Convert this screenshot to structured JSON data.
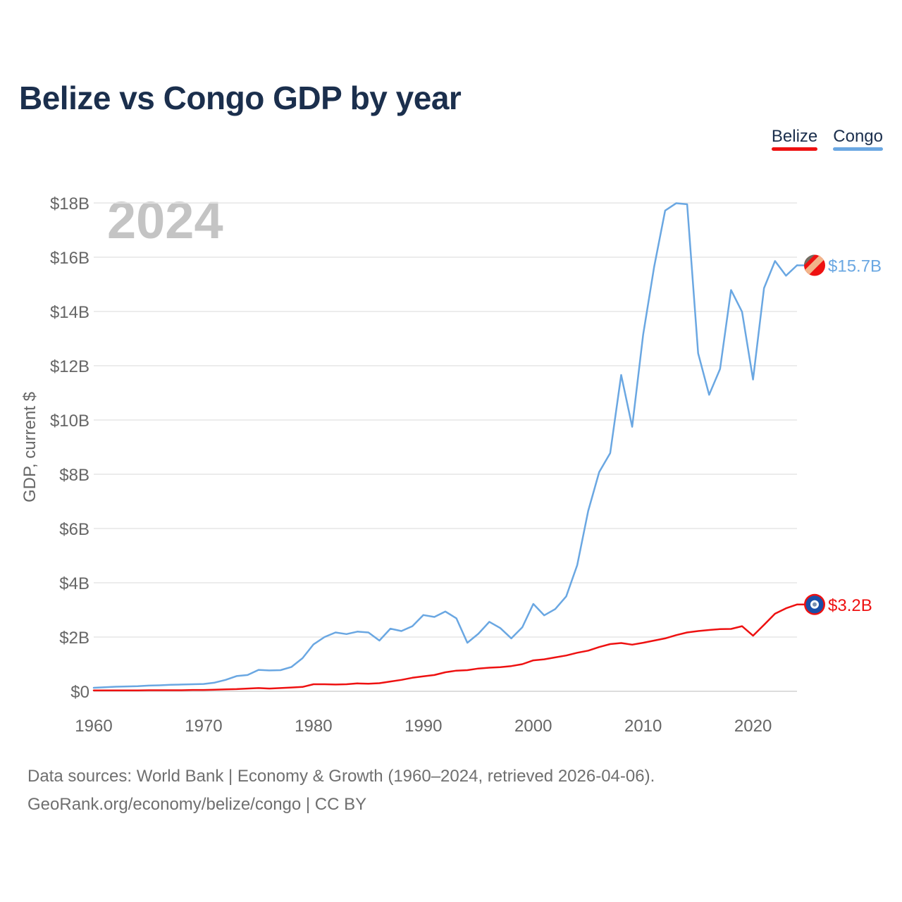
{
  "title": "Belize vs Congo GDP by year",
  "legend": {
    "belize_label": "Belize",
    "congo_label": "Congo"
  },
  "colors": {
    "belize": "#ee1111",
    "congo": "#6aa7e2",
    "title": "#1b2f4d",
    "year_watermark": "#c4c4c4"
  },
  "chart_data": {
    "type": "line",
    "title": "Belize vs Congo GDP by year",
    "xlabel": "",
    "ylabel": "GDP, current $",
    "xlim": [
      1960,
      2024
    ],
    "ylim": [
      0,
      18
    ],
    "y_unit": "billions USD",
    "yticks": [
      0,
      2,
      4,
      6,
      8,
      10,
      12,
      14,
      16,
      18
    ],
    "ytick_labels": [
      "$0",
      "$2B",
      "$4B",
      "$6B",
      "$8B",
      "$10B",
      "$12B",
      "$14B",
      "$16B",
      "$18B"
    ],
    "xticks": [
      1960,
      1970,
      1980,
      1990,
      2000,
      2010,
      2020
    ],
    "xtick_labels": [
      "1960",
      "1970",
      "1980",
      "1990",
      "2000",
      "2010",
      "2020"
    ],
    "grid": true,
    "legend_position": "top-right",
    "year_watermark": "2024",
    "series": [
      {
        "name": "Congo",
        "key": "congo",
        "end_label": "$15.7B",
        "x": [
          1960,
          1961,
          1962,
          1963,
          1964,
          1965,
          1966,
          1967,
          1968,
          1969,
          1970,
          1971,
          1972,
          1973,
          1974,
          1975,
          1976,
          1977,
          1978,
          1979,
          1980,
          1981,
          1982,
          1983,
          1984,
          1985,
          1986,
          1987,
          1988,
          1989,
          1990,
          1991,
          1992,
          1993,
          1994,
          1995,
          1996,
          1997,
          1998,
          1999,
          2000,
          2001,
          2002,
          2003,
          2004,
          2005,
          2006,
          2007,
          2008,
          2009,
          2010,
          2011,
          2012,
          2013,
          2014,
          2015,
          2016,
          2017,
          2018,
          2019,
          2020,
          2021,
          2022,
          2023,
          2024
        ],
        "values": [
          0.13,
          0.15,
          0.17,
          0.18,
          0.19,
          0.21,
          0.22,
          0.24,
          0.25,
          0.26,
          0.27,
          0.32,
          0.42,
          0.56,
          0.6,
          0.79,
          0.77,
          0.78,
          0.9,
          1.22,
          1.73,
          2.0,
          2.17,
          2.11,
          2.2,
          2.17,
          1.87,
          2.31,
          2.22,
          2.4,
          2.81,
          2.74,
          2.94,
          2.69,
          1.79,
          2.12,
          2.56,
          2.33,
          1.95,
          2.36,
          3.22,
          2.8,
          3.03,
          3.5,
          4.65,
          6.65,
          8.08,
          8.78,
          11.66,
          9.75,
          13.15,
          15.65,
          17.72,
          17.99,
          17.95,
          12.46,
          10.93,
          11.88,
          14.79,
          13.99,
          11.49,
          14.86,
          15.86,
          15.32,
          15.7
        ]
      },
      {
        "name": "Belize",
        "key": "belize",
        "end_label": "$3.2B",
        "x": [
          1960,
          1961,
          1962,
          1963,
          1964,
          1965,
          1966,
          1967,
          1968,
          1969,
          1970,
          1971,
          1972,
          1973,
          1974,
          1975,
          1976,
          1977,
          1978,
          1979,
          1980,
          1981,
          1982,
          1983,
          1984,
          1985,
          1986,
          1987,
          1988,
          1989,
          1990,
          1991,
          1992,
          1993,
          1994,
          1995,
          1996,
          1997,
          1998,
          1999,
          2000,
          2001,
          2002,
          2003,
          2004,
          2005,
          2006,
          2007,
          2008,
          2009,
          2010,
          2011,
          2012,
          2013,
          2014,
          2015,
          2016,
          2017,
          2018,
          2019,
          2020,
          2021,
          2022,
          2023,
          2024
        ],
        "values": [
          0.03,
          0.03,
          0.03,
          0.03,
          0.03,
          0.04,
          0.04,
          0.04,
          0.04,
          0.05,
          0.05,
          0.06,
          0.07,
          0.08,
          0.1,
          0.12,
          0.1,
          0.12,
          0.14,
          0.16,
          0.26,
          0.26,
          0.25,
          0.26,
          0.29,
          0.28,
          0.3,
          0.36,
          0.42,
          0.5,
          0.55,
          0.6,
          0.7,
          0.76,
          0.78,
          0.84,
          0.87,
          0.89,
          0.93,
          1.0,
          1.14,
          1.18,
          1.25,
          1.32,
          1.42,
          1.5,
          1.63,
          1.74,
          1.78,
          1.72,
          1.79,
          1.87,
          1.95,
          2.07,
          2.17,
          2.22,
          2.26,
          2.29,
          2.3,
          2.4,
          2.05,
          2.45,
          2.86,
          3.06,
          3.2
        ]
      }
    ]
  },
  "footer": {
    "line1": "Data sources: World Bank | Economy & Growth (1960–2024, retrieved 2026-04-06).",
    "line2": "GeoRank.org/economy/belize/congo | CC BY"
  }
}
